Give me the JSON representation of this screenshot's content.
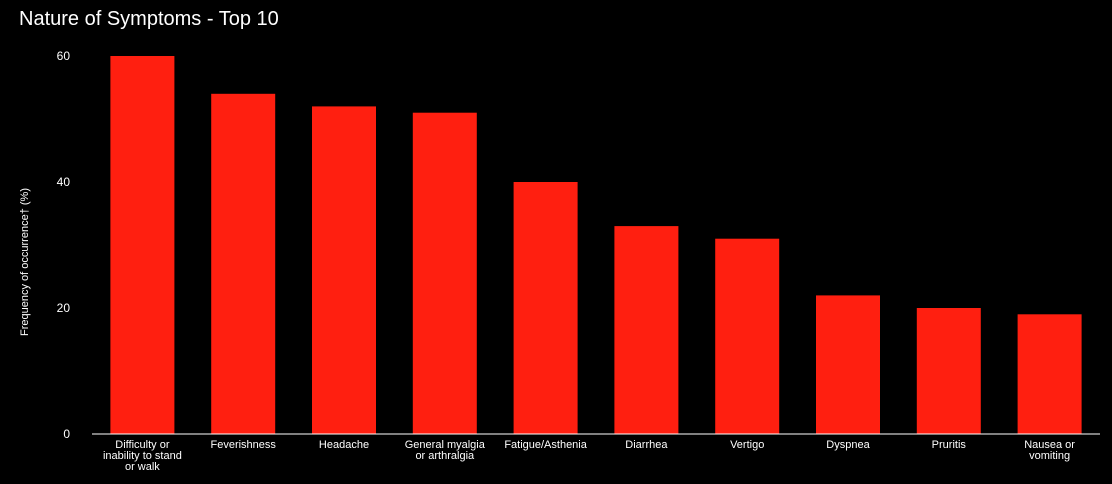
{
  "chart_data": {
    "type": "bar",
    "title": "Nature of Symptoms - Top 10",
    "xlabel": "",
    "ylabel": "Frequency of occurrence† (%)",
    "ylim": [
      0,
      60
    ],
    "yticks": [
      0,
      20,
      40,
      60
    ],
    "grid": false,
    "legend": "none",
    "categories": [
      "Difficulty or inability to stand or walk",
      "Feverishness",
      "Headache",
      "General myalgia or arthralgia",
      "Fatigue/Asthenia",
      "Diarrhea",
      "Vertigo",
      "Dyspnea",
      "Pruritis",
      "Nausea or vomiting"
    ],
    "category_label_lines": [
      [
        "Difficulty or",
        "inability to stand",
        "or walk"
      ],
      [
        "Feverishness"
      ],
      [
        "Headache"
      ],
      [
        "General myalgia",
        "or arthralgia"
      ],
      [
        "Fatigue/Asthenia"
      ],
      [
        "Diarrhea"
      ],
      [
        "Vertigo"
      ],
      [
        "Dyspnea"
      ],
      [
        "Pruritis"
      ],
      [
        "Nausea or",
        "vomiting"
      ]
    ],
    "values": [
      60,
      54,
      52,
      51,
      40,
      33,
      31,
      22,
      20,
      19
    ]
  },
  "colors": {
    "background": "#000000",
    "bar": "#ff1f10",
    "text": "#ffffff",
    "axis": "#ffffff"
  }
}
